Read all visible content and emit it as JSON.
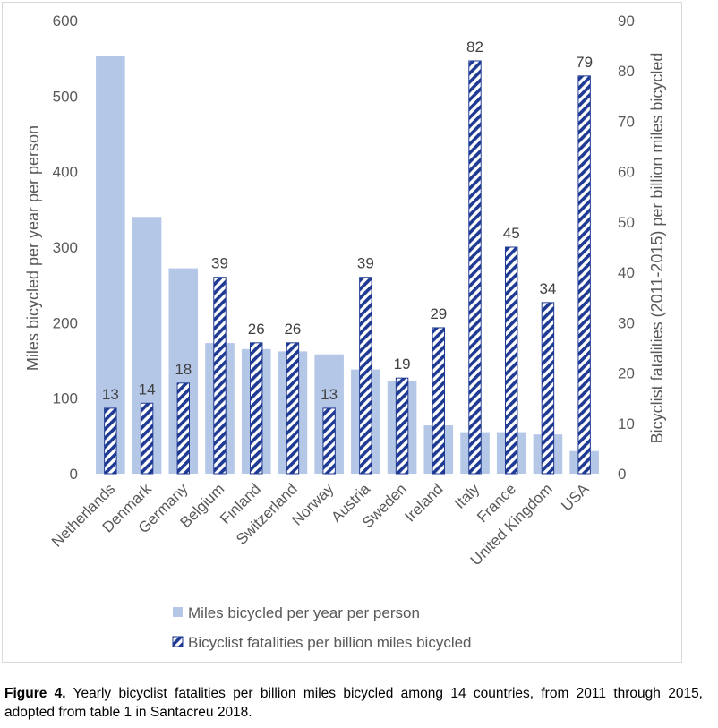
{
  "chart_data": {
    "type": "bar",
    "categories": [
      "Netherlands",
      "Denmark",
      "Germany",
      "Belgium",
      "Finland",
      "Switzerland",
      "Norway",
      "Austria",
      "Sweden",
      "Ireland",
      "Italy",
      "France",
      "United Kingdom",
      "USA"
    ],
    "series": [
      {
        "name": "Miles bicycled per year per person",
        "axis": "left",
        "color": "#b4c7e7",
        "style": "solid",
        "values": [
          553,
          340,
          272,
          173,
          165,
          162,
          158,
          138,
          123,
          64,
          55,
          55,
          52,
          30
        ]
      },
      {
        "name": "Bicyclist fatalities per billion miles bicycled",
        "axis": "right",
        "color": "#1f3a93",
        "style": "diagonal-stripes",
        "values": [
          13,
          14,
          18,
          39,
          26,
          26,
          13,
          39,
          19,
          29,
          82,
          45,
          34,
          79
        ],
        "data_labels": [
          "13",
          "14",
          "18",
          "39",
          "26",
          "26",
          "13",
          "39",
          "19",
          "29",
          "82",
          "45",
          "34",
          "79"
        ]
      }
    ],
    "y_left": {
      "label": "Miles bicycled per year per person",
      "ylim": [
        0,
        600
      ],
      "ticks": [
        "0",
        "100",
        "200",
        "300",
        "400",
        "500",
        "600"
      ]
    },
    "y_right": {
      "label": "Bicyclist fatalities (2011-2015) per billion miles bicycled",
      "ylim": [
        0,
        90
      ],
      "ticks": [
        "0",
        "10",
        "20",
        "30",
        "40",
        "50",
        "60",
        "70",
        "80",
        "90"
      ]
    },
    "xlabel": "",
    "grid": false,
    "legend": {
      "position": "bottom",
      "entries": [
        "Miles bicycled per year per person",
        "Bicyclist fatalities per billion miles bicycled"
      ]
    }
  },
  "caption": {
    "label": "Figure 4.",
    "text": " Yearly bicyclist fatalities per billion miles bicycled among 14 countries, from 2011 through 2015, adopted from table 1 in Santacreu 2018."
  }
}
